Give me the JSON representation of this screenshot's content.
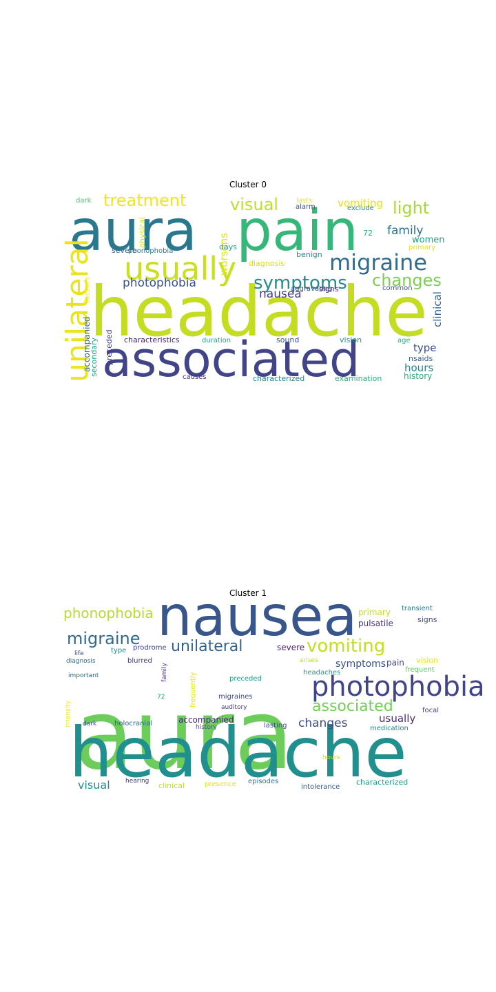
{
  "clusters": [
    {
      "title": "Cluster 0",
      "words": [
        {
          "text": "headache",
          "color": "#c4dc22"
        },
        {
          "text": "associated",
          "color": "#414487"
        },
        {
          "text": "aura",
          "color": "#2a788e"
        },
        {
          "text": "pain",
          "color": "#35b779"
        },
        {
          "text": "usually",
          "color": "#c8e020"
        },
        {
          "text": "unilateral",
          "color": "#e9e51a"
        },
        {
          "text": "migraine",
          "color": "#2f6c8e"
        },
        {
          "text": "symptoms",
          "color": "#238a8d"
        },
        {
          "text": "changes",
          "color": "#7ad151"
        },
        {
          "text": "treatment",
          "color": "#f1e51d"
        },
        {
          "text": "visual",
          "color": "#bddf26"
        },
        {
          "text": "light",
          "color": "#a5db36"
        },
        {
          "text": "photophobia",
          "color": "#3b528b"
        },
        {
          "text": "nausea",
          "color": "#433e85"
        },
        {
          "text": "family",
          "color": "#2c728e"
        },
        {
          "text": "vomiting",
          "color": "#e5e419"
        },
        {
          "text": "clinical",
          "color": "#355f8d"
        },
        {
          "text": "type",
          "color": "#3e4989"
        },
        {
          "text": "hours",
          "color": "#26828e"
        },
        {
          "text": "women",
          "color": "#20a386"
        },
        {
          "text": "worsens",
          "color": "#e2e418"
        },
        {
          "text": "history",
          "color": "#2ab07f"
        },
        {
          "text": "accompanied",
          "color": "#31688e"
        },
        {
          "text": "secondary",
          "color": "#1fa287"
        },
        {
          "text": "preceded",
          "color": "#433d84"
        },
        {
          "text": "characteristics",
          "color": "#482173"
        },
        {
          "text": "duration",
          "color": "#22a884"
        },
        {
          "text": "sound",
          "color": "#3b528b"
        },
        {
          "text": "vision",
          "color": "#20928c"
        },
        {
          "text": "age",
          "color": "#29af7f"
        },
        {
          "text": "nsaids",
          "color": "#355f8d"
        },
        {
          "text": "examination",
          "color": "#2db27d"
        },
        {
          "text": "characterized",
          "color": "#24878e"
        },
        {
          "text": "causes",
          "color": "#46337e"
        },
        {
          "text": "signs",
          "color": "#482475"
        },
        {
          "text": "common",
          "color": "#3b528b"
        },
        {
          "text": "aggravating",
          "color": "#3e4989"
        },
        {
          "text": "benign",
          "color": "#24868e"
        },
        {
          "text": "diagnosis",
          "color": "#d8e219"
        },
        {
          "text": "days",
          "color": "#1f9e89"
        },
        {
          "text": "severe",
          "color": "#2e6e8e"
        },
        {
          "text": "phonophobia",
          "color": "#26828e"
        },
        {
          "text": "physical",
          "color": "#c2df23"
        },
        {
          "text": "factors",
          "color": "#fde725"
        },
        {
          "text": "dark",
          "color": "#4ac16d"
        },
        {
          "text": "alarm",
          "color": "#3b528b"
        },
        {
          "text": "lasts",
          "color": "#e7e419"
        },
        {
          "text": "exclude",
          "color": "#26828e"
        },
        {
          "text": "72",
          "color": "#2ab07f"
        },
        {
          "text": "primary",
          "color": "#e2e418"
        }
      ]
    },
    {
      "title": "Cluster 1",
      "words": [
        {
          "text": "aura",
          "color": "#6ccd5a"
        },
        {
          "text": "headache",
          "color": "#218f8d"
        },
        {
          "text": "nausea",
          "color": "#39568c"
        },
        {
          "text": "vomiting",
          "color": "#c2df23"
        },
        {
          "text": "photophobia",
          "color": "#414487"
        },
        {
          "text": "unilateral",
          "color": "#33638d"
        },
        {
          "text": "migraine",
          "color": "#31688e"
        },
        {
          "text": "phonophobia",
          "color": "#b5de2b"
        },
        {
          "text": "associated",
          "color": "#73d056"
        },
        {
          "text": "changes",
          "color": "#3e4a89"
        },
        {
          "text": "usually",
          "color": "#482878"
        },
        {
          "text": "visual",
          "color": "#21918c"
        },
        {
          "text": "accompanied",
          "color": "#482677"
        },
        {
          "text": "symptoms",
          "color": "#3b528b"
        },
        {
          "text": "pain",
          "color": "#414487"
        },
        {
          "text": "severe",
          "color": "#481f70"
        },
        {
          "text": "primary",
          "color": "#c8e020"
        },
        {
          "text": "pulsatile",
          "color": "#46327e"
        },
        {
          "text": "transient",
          "color": "#2a788e"
        },
        {
          "text": "signs",
          "color": "#3f4788"
        },
        {
          "text": "vision",
          "color": "#e5e419"
        },
        {
          "text": "frequent",
          "color": "#5ec962"
        },
        {
          "text": "focal",
          "color": "#404688"
        },
        {
          "text": "medication",
          "color": "#25848e"
        },
        {
          "text": "characterized",
          "color": "#1f9a8a"
        },
        {
          "text": "intolerance",
          "color": "#365c8d"
        },
        {
          "text": "episodes",
          "color": "#2c728e"
        },
        {
          "text": "presence",
          "color": "#e7e419"
        },
        {
          "text": "clinical",
          "color": "#c0df25"
        },
        {
          "text": "hearing",
          "color": "#443a83"
        },
        {
          "text": "holocranial",
          "color": "#33638d"
        },
        {
          "text": "history",
          "color": "#5e3c99"
        },
        {
          "text": "lasting",
          "color": "#3e4989"
        },
        {
          "text": "headaches",
          "color": "#1e9b8a"
        },
        {
          "text": "arises",
          "color": "#b8de29"
        },
        {
          "text": "prodrome",
          "color": "#3f4788"
        },
        {
          "text": "blurred",
          "color": "#443983"
        },
        {
          "text": "type",
          "color": "#26828e"
        },
        {
          "text": "life",
          "color": "#3e4989"
        },
        {
          "text": "diagnosis",
          "color": "#31688e"
        },
        {
          "text": "important",
          "color": "#31688e"
        },
        {
          "text": "family",
          "color": "#472c7a"
        },
        {
          "text": "frequently",
          "color": "#e7e419"
        },
        {
          "text": "72",
          "color": "#20a386"
        },
        {
          "text": "preceded",
          "color": "#1f9e89"
        },
        {
          "text": "migraines",
          "color": "#3e4989"
        },
        {
          "text": "auditory",
          "color": "#4a3c84"
        },
        {
          "text": "dark",
          "color": "#3e4989"
        },
        {
          "text": "intensity",
          "color": "#f1e51d"
        },
        {
          "text": "hours",
          "color": "#c8e020"
        }
      ]
    }
  ]
}
